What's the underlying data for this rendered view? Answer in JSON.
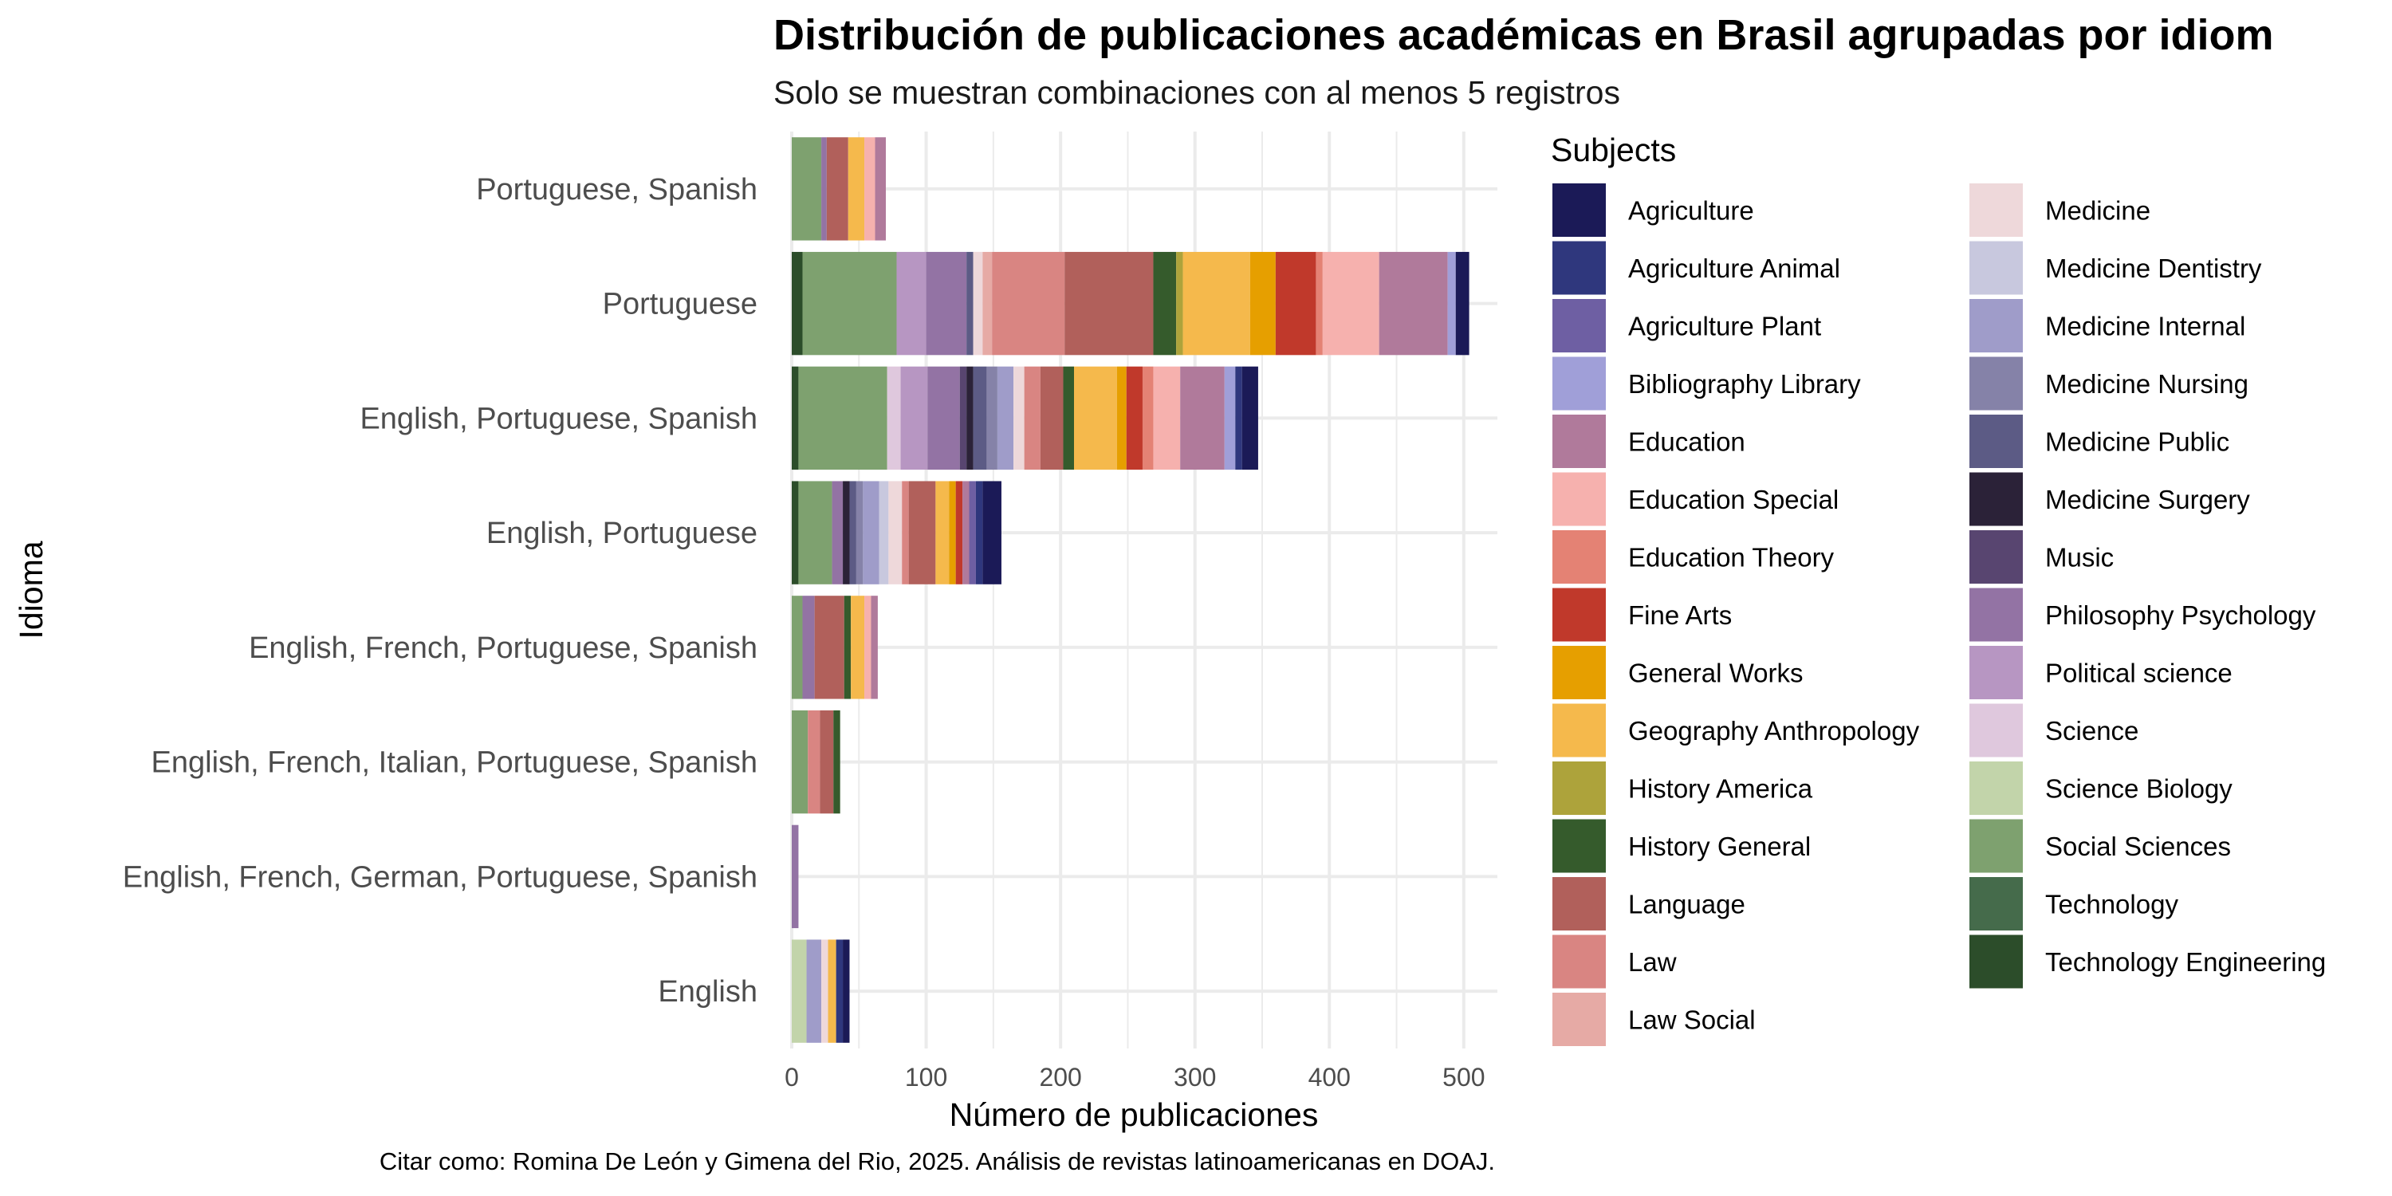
{
  "chart_data": {
    "type": "bar",
    "orientation": "horizontal",
    "stacked": true,
    "title": "Distribución de publicaciones académicas en Brasil agrupadas por idiom",
    "subtitle": "Solo se muestran combinaciones con al menos 5 registros",
    "xlabel": "Número de publicaciones",
    "ylabel": "Idioma",
    "caption": "Citar como: Romina De León y Gimena del Rio, 2025. Análisis de revistas latinoamericanas en DOAJ.",
    "xlim": [
      0,
      525
    ],
    "x_ticks": [
      0,
      100,
      200,
      300,
      400,
      500
    ],
    "grid": true,
    "legend_position": "right",
    "legend_title": "Subjects",
    "categories": [
      "Portuguese, Spanish",
      "Portuguese",
      "English, Portuguese, Spanish",
      "English, Portuguese",
      "English, French, Portuguese, Spanish",
      "English, French, Italian, Portuguese, Spanish",
      "English, French, German, Portuguese, Spanish",
      "English"
    ],
    "subjects": [
      {
        "name": "Agriculture",
        "color": "#1b1a57"
      },
      {
        "name": "Agriculture Animal",
        "color": "#2f377d"
      },
      {
        "name": "Agriculture Plant",
        "color": "#6e5fa3"
      },
      {
        "name": "Bibliography Library",
        "color": "#a09fd8"
      },
      {
        "name": "Education",
        "color": "#b07a9b"
      },
      {
        "name": "Education Special",
        "color": "#f6b1ae"
      },
      {
        "name": "Education Theory",
        "color": "#e48274"
      },
      {
        "name": "Fine Arts",
        "color": "#c0392b"
      },
      {
        "name": "General Works",
        "color": "#e69f00"
      },
      {
        "name": "Geography Anthropology",
        "color": "#f5b94c"
      },
      {
        "name": "History America",
        "color": "#ada33b"
      },
      {
        "name": "History General",
        "color": "#355b2c"
      },
      {
        "name": "Language",
        "color": "#b1605b"
      },
      {
        "name": "Law",
        "color": "#d98582"
      },
      {
        "name": "Law Social",
        "color": "#e6aaa5"
      },
      {
        "name": "Medicine",
        "color": "#eed8da"
      },
      {
        "name": "Medicine Dentistry",
        "color": "#c8c8de"
      },
      {
        "name": "Medicine Internal",
        "color": "#9f9cc9"
      },
      {
        "name": "Medicine Nursing",
        "color": "#8582a8"
      },
      {
        "name": "Medicine Public",
        "color": "#5c5b85"
      },
      {
        "name": "Medicine Surgery",
        "color": "#2b2238"
      },
      {
        "name": "Music",
        "color": "#584570"
      },
      {
        "name": "Philosophy Psychology",
        "color": "#9373a4"
      },
      {
        "name": "Political science",
        "color": "#b796c2"
      },
      {
        "name": "Science",
        "color": "#dfc8dd"
      },
      {
        "name": "Science Biology",
        "color": "#c2d4aa"
      },
      {
        "name": "Social Sciences",
        "color": "#7ea16f"
      },
      {
        "name": "Technology",
        "color": "#456b4b"
      },
      {
        "name": "Technology Engineering",
        "color": "#2c4d2a"
      }
    ],
    "stack_order": [
      "Technology Engineering",
      "Technology",
      "Social Sciences",
      "Science Biology",
      "Science",
      "Political science",
      "Philosophy Psychology",
      "Music",
      "Medicine Surgery",
      "Medicine Public",
      "Medicine Nursing",
      "Medicine Internal",
      "Medicine Dentistry",
      "Medicine",
      "Law Social",
      "Law",
      "Language",
      "History General",
      "History America",
      "Geography Anthropology",
      "General Works",
      "Fine Arts",
      "Education Theory",
      "Education Special",
      "Education",
      "Bibliography Library",
      "Agriculture Plant",
      "Agriculture Animal",
      "Agriculture"
    ],
    "series": [
      {
        "category": "Portuguese, Spanish",
        "segments": [
          {
            "subject": "Social Sciences",
            "value": 22
          },
          {
            "subject": "Philosophy Psychology",
            "value": 4
          },
          {
            "subject": "Language",
            "value": 16
          },
          {
            "subject": "Geography Anthropology",
            "value": 12
          },
          {
            "subject": "Education Special",
            "value": 8
          },
          {
            "subject": "Education",
            "value": 8
          }
        ]
      },
      {
        "category": "Portuguese",
        "segments": [
          {
            "subject": "Technology Engineering",
            "value": 8
          },
          {
            "subject": "Social Sciences",
            "value": 70
          },
          {
            "subject": "Political science",
            "value": 22
          },
          {
            "subject": "Philosophy Psychology",
            "value": 30
          },
          {
            "subject": "Medicine Public",
            "value": 5
          },
          {
            "subject": "Medicine",
            "value": 7
          },
          {
            "subject": "Law Social",
            "value": 7
          },
          {
            "subject": "Law",
            "value": 54
          },
          {
            "subject": "Language",
            "value": 66
          },
          {
            "subject": "History General",
            "value": 17
          },
          {
            "subject": "History America",
            "value": 5
          },
          {
            "subject": "Geography Anthropology",
            "value": 50
          },
          {
            "subject": "General Works",
            "value": 19
          },
          {
            "subject": "Fine Arts",
            "value": 30
          },
          {
            "subject": "Education Theory",
            "value": 5
          },
          {
            "subject": "Education Special",
            "value": 42
          },
          {
            "subject": "Education",
            "value": 51
          },
          {
            "subject": "Bibliography Library",
            "value": 6
          },
          {
            "subject": "Agriculture",
            "value": 10
          }
        ]
      },
      {
        "category": "English, Portuguese, Spanish",
        "segments": [
          {
            "subject": "Technology Engineering",
            "value": 5
          },
          {
            "subject": "Social Sciences",
            "value": 66
          },
          {
            "subject": "Science",
            "value": 10
          },
          {
            "subject": "Political science",
            "value": 20
          },
          {
            "subject": "Philosophy Psychology",
            "value": 24
          },
          {
            "subject": "Music",
            "value": 5
          },
          {
            "subject": "Medicine Surgery",
            "value": 5
          },
          {
            "subject": "Medicine Public",
            "value": 10
          },
          {
            "subject": "Medicine Nursing",
            "value": 8
          },
          {
            "subject": "Medicine Internal",
            "value": 12
          },
          {
            "subject": "Medicine",
            "value": 8
          },
          {
            "subject": "Law",
            "value": 12
          },
          {
            "subject": "Language",
            "value": 17
          },
          {
            "subject": "History General",
            "value": 8
          },
          {
            "subject": "Geography Anthropology",
            "value": 32
          },
          {
            "subject": "General Works",
            "value": 7
          },
          {
            "subject": "Fine Arts",
            "value": 12
          },
          {
            "subject": "Education Theory",
            "value": 8
          },
          {
            "subject": "Education Special",
            "value": 20
          },
          {
            "subject": "Education",
            "value": 33
          },
          {
            "subject": "Bibliography Library",
            "value": 8
          },
          {
            "subject": "Agriculture Animal",
            "value": 5
          },
          {
            "subject": "Agriculture",
            "value": 12
          }
        ]
      },
      {
        "category": "English, Portuguese",
        "segments": [
          {
            "subject": "Technology Engineering",
            "value": 5
          },
          {
            "subject": "Social Sciences",
            "value": 25
          },
          {
            "subject": "Philosophy Psychology",
            "value": 8
          },
          {
            "subject": "Medicine Surgery",
            "value": 5
          },
          {
            "subject": "Medicine Public",
            "value": 5
          },
          {
            "subject": "Medicine Nursing",
            "value": 5
          },
          {
            "subject": "Medicine Internal",
            "value": 12
          },
          {
            "subject": "Medicine Dentistry",
            "value": 7
          },
          {
            "subject": "Medicine",
            "value": 10
          },
          {
            "subject": "Law",
            "value": 5
          },
          {
            "subject": "Language",
            "value": 20
          },
          {
            "subject": "Geography Anthropology",
            "value": 10
          },
          {
            "subject": "General Works",
            "value": 5
          },
          {
            "subject": "Fine Arts",
            "value": 5
          },
          {
            "subject": "Education",
            "value": 5
          },
          {
            "subject": "Agriculture Plant",
            "value": 5
          },
          {
            "subject": "Agriculture Animal",
            "value": 5
          },
          {
            "subject": "Agriculture",
            "value": 14
          }
        ]
      },
      {
        "category": "English, French, Portuguese, Spanish",
        "segments": [
          {
            "subject": "Social Sciences",
            "value": 8
          },
          {
            "subject": "Philosophy Psychology",
            "value": 9
          },
          {
            "subject": "Language",
            "value": 22
          },
          {
            "subject": "History General",
            "value": 5
          },
          {
            "subject": "Geography Anthropology",
            "value": 10
          },
          {
            "subject": "Education Special",
            "value": 5
          },
          {
            "subject": "Education",
            "value": 5
          }
        ]
      },
      {
        "category": "English, French, Italian, Portuguese, Spanish",
        "segments": [
          {
            "subject": "Social Sciences",
            "value": 12
          },
          {
            "subject": "Law",
            "value": 9
          },
          {
            "subject": "Language",
            "value": 10
          },
          {
            "subject": "History General",
            "value": 5
          }
        ]
      },
      {
        "category": "English, French, German, Portuguese, Spanish",
        "segments": [
          {
            "subject": "Philosophy Psychology",
            "value": 5
          }
        ]
      },
      {
        "category": "English",
        "segments": [
          {
            "subject": "Science Biology",
            "value": 11
          },
          {
            "subject": "Medicine Internal",
            "value": 11
          },
          {
            "subject": "Medicine",
            "value": 5
          },
          {
            "subject": "Geography Anthropology",
            "value": 6
          },
          {
            "subject": "Agriculture Animal",
            "value": 5
          },
          {
            "subject": "Agriculture",
            "value": 5
          }
        ]
      }
    ]
  }
}
